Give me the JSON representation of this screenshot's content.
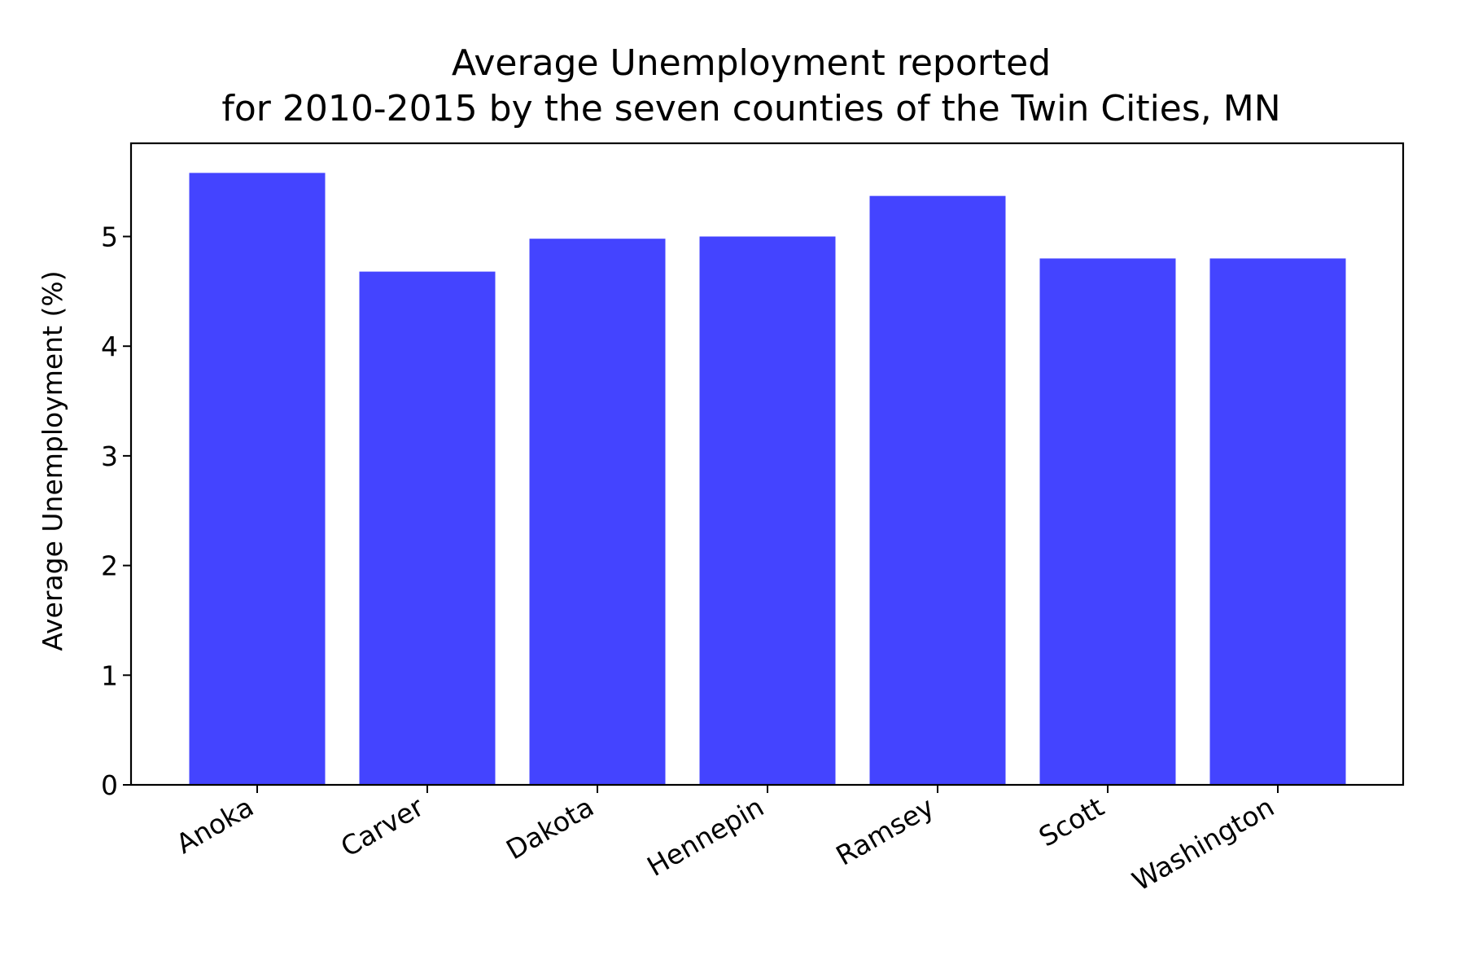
{
  "chart_data": {
    "type": "bar",
    "title_lines": [
      "Average Unemployment reported",
      "for 2010-2015 by the seven counties of the Twin Cities, MN"
    ],
    "xlabel": "",
    "ylabel": "Average Unemployment (%)",
    "categories": [
      "Anoka",
      "Carver",
      "Dakota",
      "Hennepin",
      "Ramsey",
      "Scott",
      "Washington"
    ],
    "values": [
      5.58,
      4.68,
      4.98,
      5.0,
      5.37,
      4.8,
      4.8
    ],
    "ylim": [
      0,
      5.85
    ],
    "yticks": [
      0,
      1,
      2,
      3,
      4,
      5
    ],
    "bar_color": "#4444ff",
    "grid": false,
    "legend": "none"
  }
}
